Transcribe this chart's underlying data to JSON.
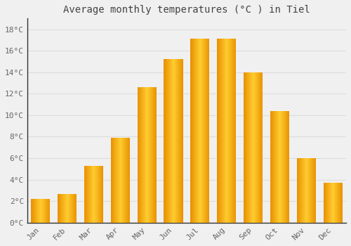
{
  "title": "Average monthly temperatures (°C ) in Tiel",
  "months": [
    "Jan",
    "Feb",
    "Mar",
    "Apr",
    "May",
    "Jun",
    "Jul",
    "Aug",
    "Sep",
    "Oct",
    "Nov",
    "Dec"
  ],
  "values": [
    2.2,
    2.7,
    5.3,
    7.9,
    12.6,
    15.2,
    17.1,
    17.1,
    14.0,
    10.4,
    6.0,
    3.7
  ],
  "bar_color": "#FFC125",
  "bar_edge_color": "#E89000",
  "ylim": [
    0,
    19
  ],
  "yticks": [
    0,
    2,
    4,
    6,
    8,
    10,
    12,
    14,
    16,
    18
  ],
  "ytick_labels": [
    "0°C",
    "2°C",
    "4°C",
    "6°C",
    "8°C",
    "10°C",
    "12°C",
    "14°C",
    "16°C",
    "18°C"
  ],
  "background_color": "#F0F0F0",
  "grid_color": "#DDDDDD",
  "title_fontsize": 10,
  "tick_fontsize": 8,
  "font_family": "monospace",
  "title_color": "#444444",
  "tick_color": "#666666",
  "left_spine_color": "#333333",
  "bottom_spine_color": "#333333"
}
